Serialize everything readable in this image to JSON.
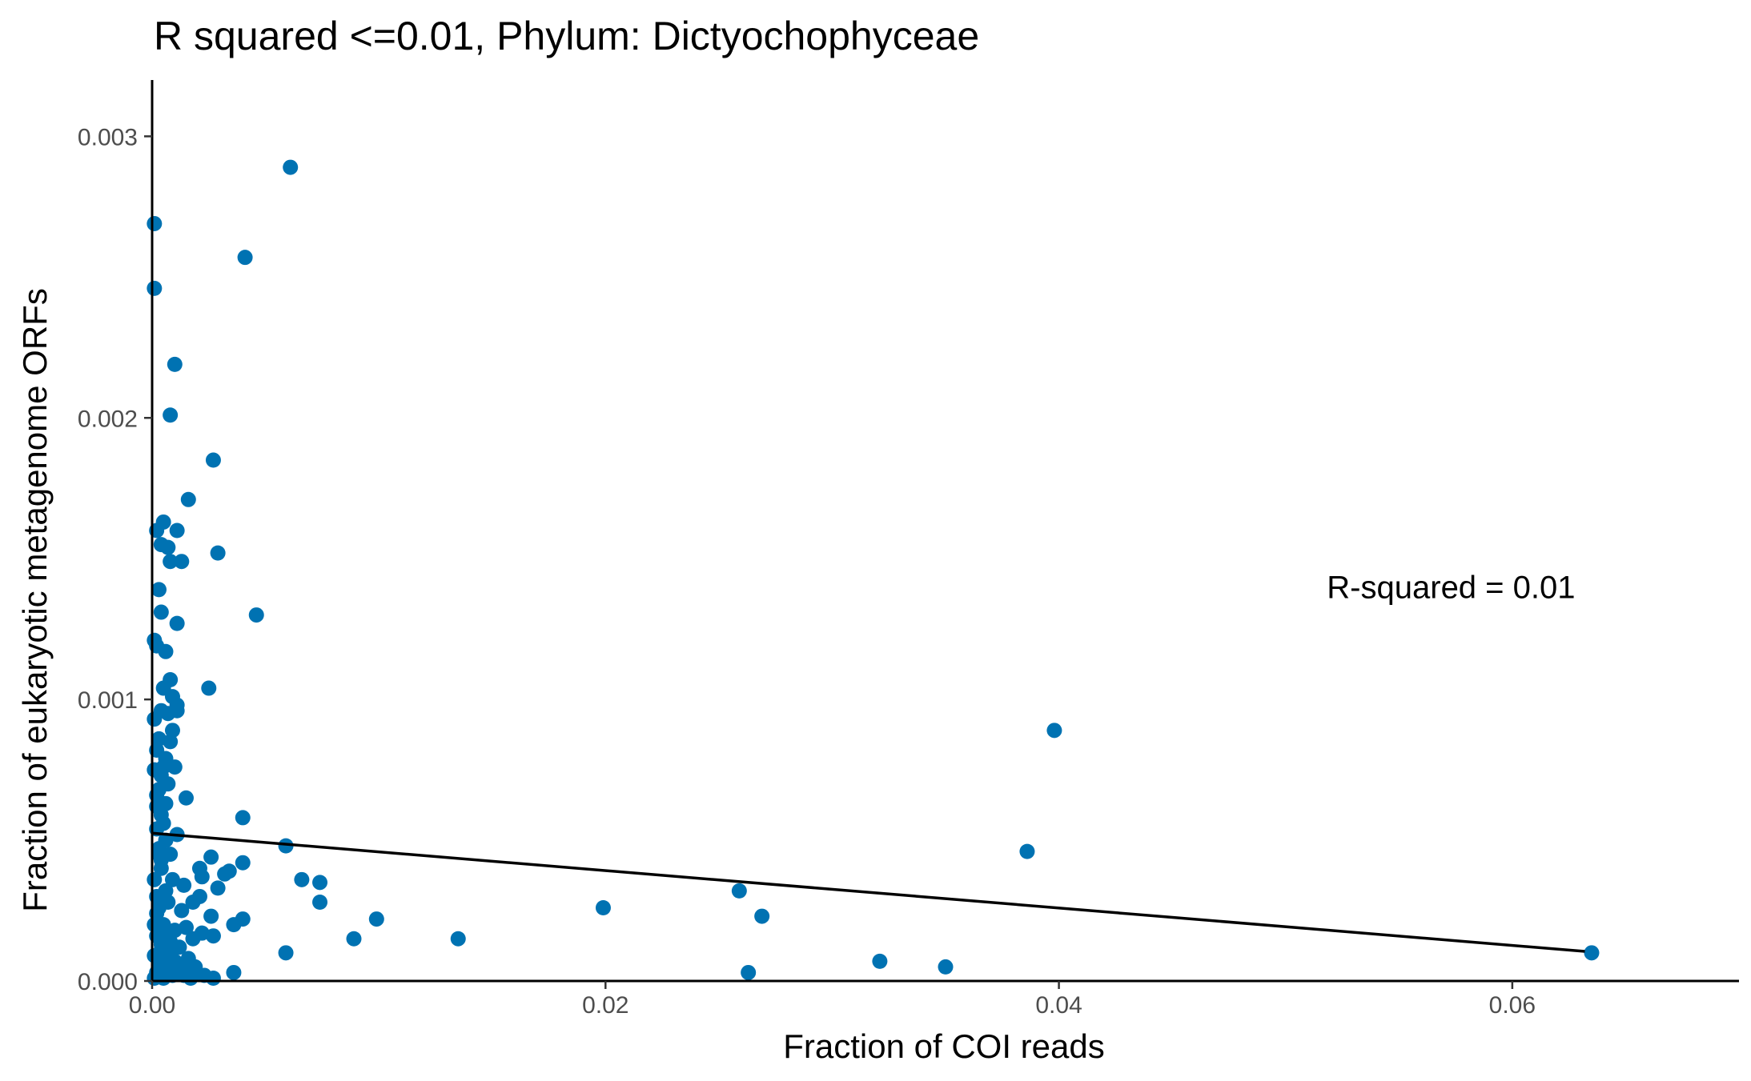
{
  "chart_data": {
    "type": "scatter",
    "title": "R squared <=0.01, Phylum:  Dictyochophyceae",
    "xlabel": "Fraction of COI reads",
    "ylabel": "Fraction of eukaryotic metagenome ORFs",
    "xlim": [
      0,
      0.07
    ],
    "ylim": [
      0,
      0.0032
    ],
    "x_ticks": [
      0,
      0.02,
      0.04,
      0.06
    ],
    "x_tick_labels": [
      "0.00",
      "0.02",
      "0.04",
      "0.06"
    ],
    "y_ticks": [
      0,
      0.001,
      0.002,
      0.003
    ],
    "y_tick_labels": [
      "0.000",
      "0.001",
      "0.002",
      "0.003"
    ],
    "grid": false,
    "point_color": "#0072B2",
    "line_color": "#000000",
    "annotation": "R-squared =  0.01",
    "annotation_position": {
      "x": 0.0573,
      "y": 0.0014
    },
    "regression_line": {
      "x": [
        0,
        0.0632
      ],
      "y": [
        0.000525,
        0.000105
      ]
    },
    "points": [
      [
        0.0061,
        0.00289
      ],
      [
        0.0041,
        0.00257
      ],
      [
        0.0001,
        0.00269
      ],
      [
        0.0001,
        0.00246
      ],
      [
        0.001,
        0.00219
      ],
      [
        0.0008,
        0.00201
      ],
      [
        0.0027,
        0.00185
      ],
      [
        0.0016,
        0.00171
      ],
      [
        0.0005,
        0.00163
      ],
      [
        0.0011,
        0.0016
      ],
      [
        0.0002,
        0.0016
      ],
      [
        0.0029,
        0.00152
      ],
      [
        0.0004,
        0.00155
      ],
      [
        0.0007,
        0.00154
      ],
      [
        0.0013,
        0.00149
      ],
      [
        0.0008,
        0.00149
      ],
      [
        0.0046,
        0.0013
      ],
      [
        0.0003,
        0.00139
      ],
      [
        0.0004,
        0.00131
      ],
      [
        0.0011,
        0.00127
      ],
      [
        0.0001,
        0.00121
      ],
      [
        0.0002,
        0.00119
      ],
      [
        0.0006,
        0.00117
      ],
      [
        0.0025,
        0.00104
      ],
      [
        0.0008,
        0.00107
      ],
      [
        0.0005,
        0.00104
      ],
      [
        0.0009,
        0.00101
      ],
      [
        0.0011,
        0.00098
      ],
      [
        0.0004,
        0.00096
      ],
      [
        0.0007,
        0.00095
      ],
      [
        0.0011,
        0.00096
      ],
      [
        0.0001,
        0.00093
      ],
      [
        0.0009,
        0.00089
      ],
      [
        0.0003,
        0.00086
      ],
      [
        0.0008,
        0.00085
      ],
      [
        0.0002,
        0.00082
      ],
      [
        0.0006,
        0.00079
      ],
      [
        0.0005,
        0.00076
      ],
      [
        0.001,
        0.00076
      ],
      [
        0.0004,
        0.00073
      ],
      [
        0.0007,
        0.0007
      ],
      [
        0.0003,
        0.00068
      ],
      [
        0.0015,
        0.00065
      ],
      [
        0.0002,
        0.00066
      ],
      [
        0.0006,
        0.00063
      ],
      [
        0.0004,
        0.00059
      ],
      [
        0.004,
        0.00058
      ],
      [
        0.0005,
        0.00056
      ],
      [
        0.0002,
        0.00054
      ],
      [
        0.0011,
        0.00052
      ],
      [
        0.0059,
        0.00048
      ],
      [
        0.0006,
        0.0005
      ],
      [
        0.0003,
        0.00047
      ],
      [
        0.0008,
        0.00045
      ],
      [
        0.0026,
        0.00044
      ],
      [
        0.0004,
        0.00043
      ],
      [
        0.004,
        0.00042
      ],
      [
        0.0021,
        0.0004
      ],
      [
        0.0034,
        0.00039
      ],
      [
        0.0032,
        0.00038
      ],
      [
        0.0022,
        0.00037
      ],
      [
        0.0066,
        0.00036
      ],
      [
        0.0074,
        0.00035
      ],
      [
        0.0014,
        0.00034
      ],
      [
        0.0029,
        0.00033
      ],
      [
        0.0006,
        0.00032
      ],
      [
        0.0021,
        0.0003
      ],
      [
        0.0018,
        0.00028
      ],
      [
        0.0074,
        0.00028
      ],
      [
        0.0013,
        0.00025
      ],
      [
        0.0002,
        0.00024
      ],
      [
        0.0026,
        0.00023
      ],
      [
        0.0099,
        0.00022
      ],
      [
        0.004,
        0.00022
      ],
      [
        0.0036,
        0.0002
      ],
      [
        0.0015,
        0.00019
      ],
      [
        0.001,
        0.00018
      ],
      [
        0.0022,
        0.00017
      ],
      [
        0.0027,
        0.00016
      ],
      [
        0.0018,
        0.00015
      ],
      [
        0.0089,
        0.00015
      ],
      [
        0.0135,
        0.00015
      ],
      [
        0.0008,
        0.00014
      ],
      [
        0.0012,
        0.00012
      ],
      [
        0.0004,
        0.00011
      ],
      [
        0.0059,
        0.0001
      ],
      [
        0.0016,
        8e-05
      ],
      [
        0.001,
        7e-05
      ],
      [
        0.0006,
        6e-05
      ],
      [
        0.0019,
        5e-05
      ],
      [
        0.0013,
        4e-05
      ],
      [
        0.0036,
        3e-05
      ],
      [
        0.0023,
        2e-05
      ],
      [
        0.0027,
        1e-05
      ],
      [
        0.0005,
        1e-05
      ],
      [
        0.0009,
        2e-05
      ],
      [
        0.0199,
        0.00026
      ],
      [
        0.0259,
        0.00032
      ],
      [
        0.0269,
        0.00023
      ],
      [
        0.0263,
        3e-05
      ],
      [
        0.0321,
        7e-05
      ],
      [
        0.035,
        5e-05
      ],
      [
        0.0386,
        0.00046
      ],
      [
        0.0398,
        0.00089
      ],
      [
        0.0635,
        0.0001
      ],
      [
        0.0001,
        0.00036
      ],
      [
        0.0002,
        0.0003
      ],
      [
        0.0003,
        0.00026
      ],
      [
        0.0001,
        0.0002
      ],
      [
        0.0002,
        0.00016
      ],
      [
        0.0004,
        0.00013
      ],
      [
        0.0001,
        9e-05
      ],
      [
        0.0003,
        6e-05
      ],
      [
        0.0002,
        3e-05
      ],
      [
        0.0001,
        1e-05
      ],
      [
        0.0005,
        0.0002
      ],
      [
        0.0007,
        0.00028
      ],
      [
        0.0004,
        0.0004
      ],
      [
        0.0009,
        0.00036
      ],
      [
        0.0006,
        0.00018
      ],
      [
        0.0008,
        0.0001
      ],
      [
        0.0003,
        0.00045
      ],
      [
        0.0002,
        0.00062
      ],
      [
        0.0001,
        0.00075
      ],
      [
        0.0005,
        9e-05
      ],
      [
        0.0011,
        4e-05
      ],
      [
        0.0014,
        2e-05
      ],
      [
        0.0017,
        1e-05
      ],
      [
        0.0007,
        3e-05
      ]
    ]
  }
}
